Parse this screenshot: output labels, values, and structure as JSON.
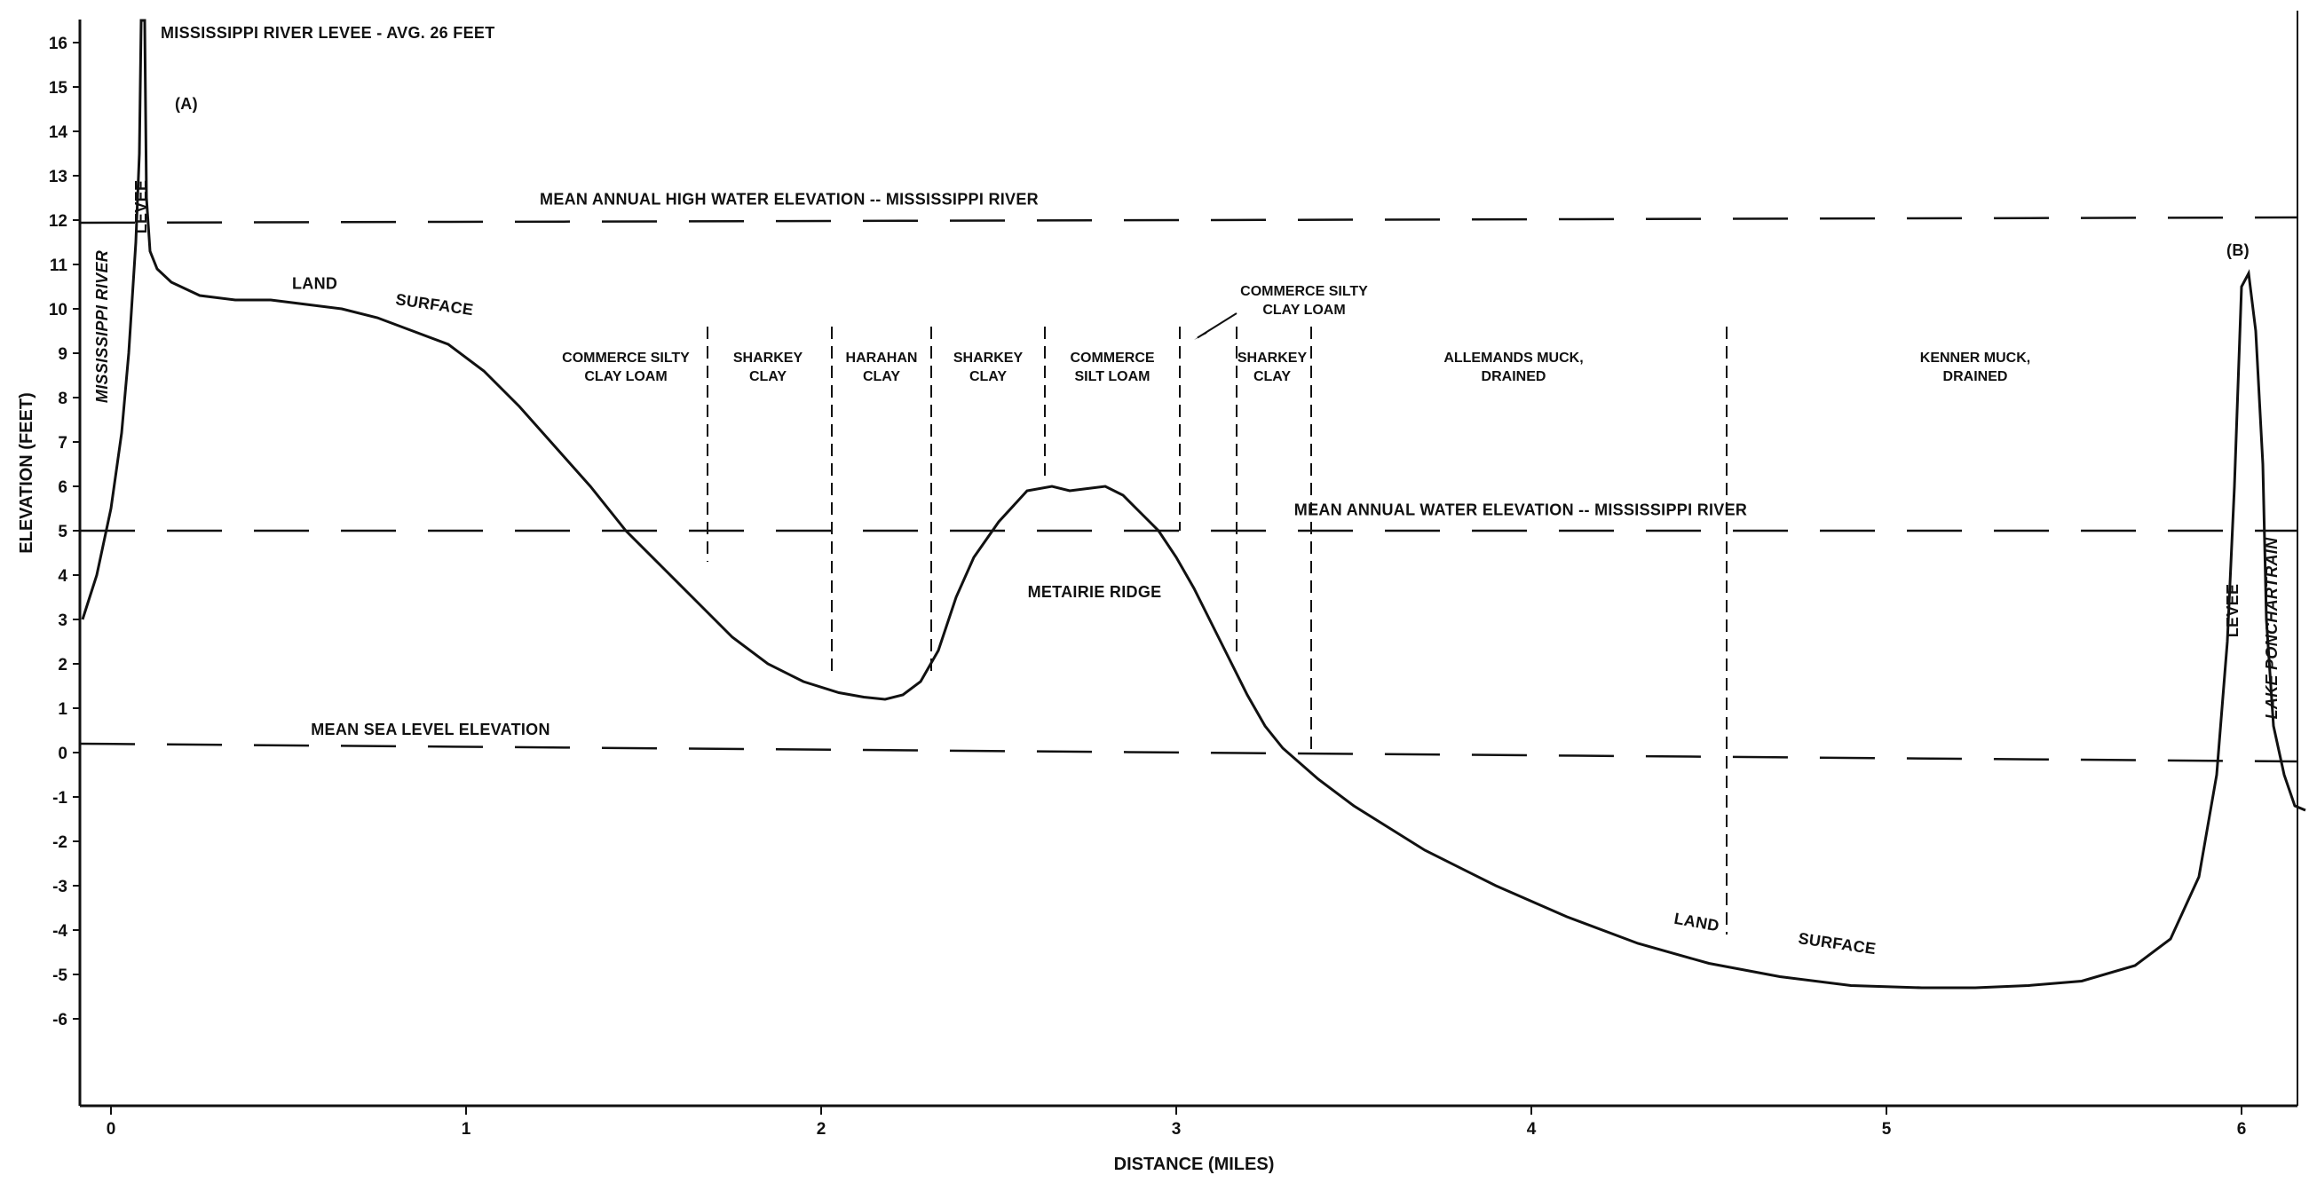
{
  "chart_data": {
    "type": "line",
    "xlabel": "DISTANCE (MILES)",
    "ylabel": "ELEVATION (FEET)",
    "xlim": [
      -0.08,
      6.18
    ],
    "ylim": [
      -7.9,
      16.5
    ],
    "x_ticks": [
      "0",
      "1",
      "2",
      "3",
      "4",
      "5",
      "6"
    ],
    "y_ticks": [
      "16",
      "15",
      "14",
      "13",
      "12",
      "11",
      "10",
      "9",
      "8",
      "7",
      "6",
      "5",
      "4",
      "3",
      "2",
      "1",
      "0",
      "-1",
      "-2",
      "-3",
      "-4",
      "-5",
      "-6"
    ],
    "series": [
      {
        "x": [
          -0.08,
          -0.04,
          0,
          0.03,
          0.05,
          0.07,
          0.08,
          0.085,
          0.09,
          0.095,
          0.1,
          0.11,
          0.13,
          0.17,
          0.25,
          0.35,
          0.45,
          0.55,
          0.65,
          0.75,
          0.85,
          0.95,
          1.05,
          1.15,
          1.25,
          1.35,
          1.45,
          1.55,
          1.65,
          1.75,
          1.85,
          1.95,
          2.05,
          2.12,
          2.18,
          2.23,
          2.28,
          2.33,
          2.38,
          2.43,
          2.5,
          2.58,
          2.65,
          2.7,
          2.75,
          2.8,
          2.85,
          2.9,
          2.95,
          3.0,
          3.05,
          3.1,
          3.15,
          3.2,
          3.25,
          3.3,
          3.4,
          3.5,
          3.7,
          3.9,
          4.1,
          4.3,
          4.5,
          4.7,
          4.9,
          5.1,
          5.25,
          5.4,
          5.55,
          5.7,
          5.8,
          5.88,
          5.93,
          5.96,
          5.98,
          6.0,
          6.02,
          6.04,
          6.06,
          6.07,
          6.09,
          6.12,
          6.15,
          6.18
        ],
        "y": [
          3.0,
          4.0,
          5.5,
          7.2,
          9.0,
          11.5,
          13.5,
          16.5,
          16.5,
          16.5,
          12.5,
          11.3,
          10.9,
          10.6,
          10.3,
          10.2,
          10.2,
          10.1,
          10.0,
          9.8,
          9.5,
          9.2,
          8.6,
          7.8,
          6.9,
          6.0,
          5.0,
          4.2,
          3.4,
          2.6,
          2.0,
          1.6,
          1.35,
          1.25,
          1.2,
          1.3,
          1.6,
          2.3,
          3.5,
          4.4,
          5.2,
          5.9,
          6.0,
          5.9,
          5.95,
          6.0,
          5.8,
          5.4,
          5.0,
          4.4,
          3.7,
          2.9,
          2.1,
          1.3,
          0.6,
          0.1,
          -0.6,
          -1.2,
          -2.2,
          -3.0,
          -3.7,
          -4.3,
          -4.75,
          -5.05,
          -5.25,
          -5.3,
          -5.3,
          -5.25,
          -5.15,
          -4.8,
          -4.2,
          -2.8,
          -0.5,
          2.5,
          6.0,
          10.5,
          10.8,
          9.5,
          6.5,
          3.0,
          0.6,
          -0.5,
          -1.2,
          -1.3
        ]
      }
    ],
    "reference_lines": [
      {
        "y": 12.0,
        "label": "MEAN ANNUAL HIGH WATER ELEVATION -- MISSISSIPPI RIVER"
      },
      {
        "y": 5.0,
        "label": "MEAN ANNUAL WATER ELEVATION -- MISSISSIPPI RIVER"
      },
      {
        "y": 0.0,
        "label": "MEAN SEA LEVEL ELEVATION"
      }
    ],
    "soil_boundaries_miles": [
      1.68,
      2.03,
      2.31,
      2.63,
      3.01,
      3.17,
      3.38,
      4.55
    ],
    "soil_zones": [
      {
        "line1": "COMMERCE SILTY",
        "line2": "CLAY LOAM",
        "x": 1.45,
        "y": 8.8
      },
      {
        "line1": "SHARKEY",
        "line2": "CLAY",
        "x": 1.85,
        "y": 8.8
      },
      {
        "line1": "HARAHAN",
        "line2": "CLAY",
        "x": 2.17,
        "y": 8.8
      },
      {
        "line1": "SHARKEY",
        "line2": "CLAY",
        "x": 2.47,
        "y": 8.8
      },
      {
        "line1": "COMMERCE",
        "line2": "SILT LOAM",
        "x": 2.82,
        "y": 8.8
      },
      {
        "line1": "SHARKEY",
        "line2": "CLAY",
        "x": 3.27,
        "y": 8.8
      },
      {
        "line1": "ALLEMANDS MUCK,",
        "line2": "DRAINED",
        "x": 3.95,
        "y": 8.8
      },
      {
        "line1": "KENNER MUCK,",
        "line2": "DRAINED",
        "x": 5.25,
        "y": 8.8
      },
      {
        "line1": "COMMERCE SILTY",
        "line2": "CLAY LOAM",
        "x": 3.36,
        "y": 10.3
      }
    ],
    "annotations": [
      {
        "text": "MISSISSIPPI RIVER LEVEE - AVG. 26 FEET",
        "x": 0.14,
        "y": 16.1
      },
      {
        "text": "(A)",
        "x": 0.18,
        "y": 14.5
      },
      {
        "text": "(B)",
        "x": 5.99,
        "y": 11.2
      },
      {
        "text": "LAND",
        "x": 0.51,
        "y": 10.45
      },
      {
        "text": "SURFACE",
        "x": 0.8,
        "y": 10.1
      },
      {
        "text": "METAIRIE RIDGE",
        "x": 2.77,
        "y": 3.5
      },
      {
        "text": "LAND",
        "x": 4.4,
        "y": -3.85
      },
      {
        "text": "SURFACE",
        "x": 4.75,
        "y": -4.3
      },
      {
        "text": "MISSISSIPPI RIVER",
        "x": -0.01,
        "y": 9.6
      },
      {
        "text": "LEVEE",
        "x": 0.1,
        "y": 12.3
      },
      {
        "text": "LEVEE",
        "x": 5.99,
        "y": 3.2
      },
      {
        "text": "LAKE PONCHARTRAIN",
        "x": 6.1,
        "y": 2.8
      }
    ]
  }
}
